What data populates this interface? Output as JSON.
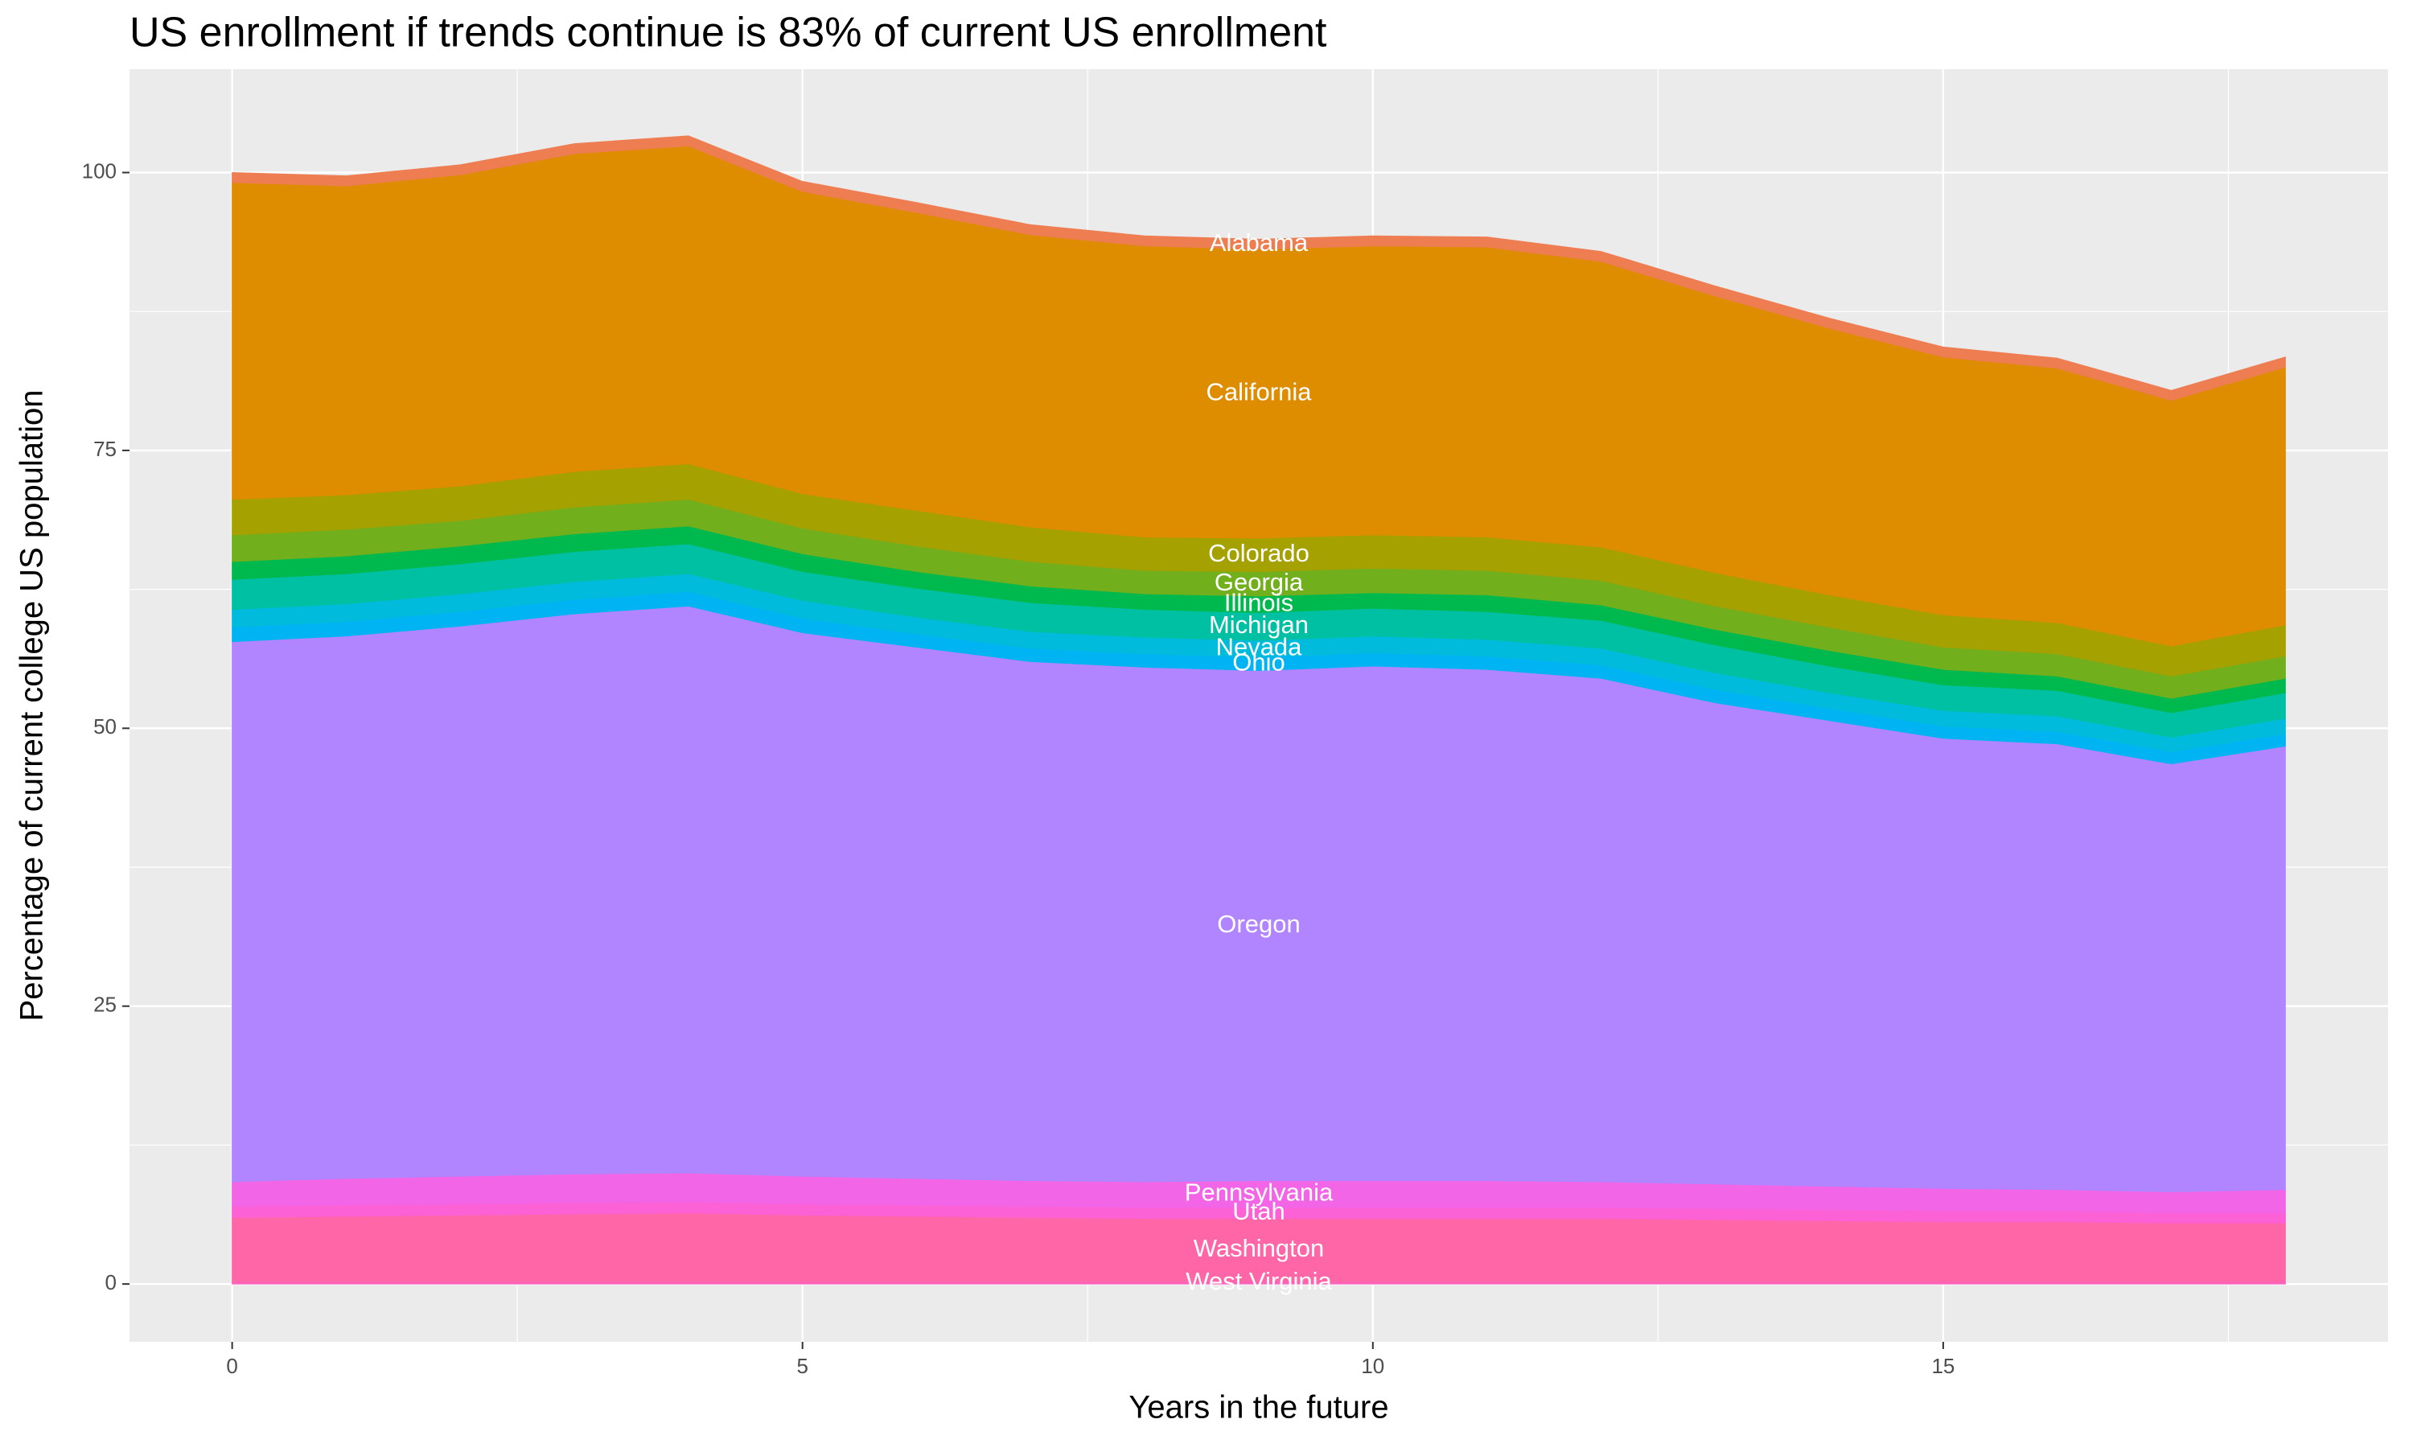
{
  "chart_data": {
    "type": "stacked_area",
    "title": "US enrollment if trends continue is 83% of current US enrollment",
    "x_label": "Years in the future",
    "y_label": "Percentage of current college US population",
    "x": [
      0,
      1,
      2,
      3,
      4,
      5,
      6,
      7,
      8,
      9,
      10,
      11,
      12,
      13,
      14,
      15,
      16,
      17,
      18
    ],
    "xlim": [
      -0.9,
      18.9
    ],
    "xticks": [
      0,
      5,
      10,
      15
    ],
    "ylim": [
      -5.2,
      109.3
    ],
    "yticks": [
      0,
      25,
      50,
      75,
      100
    ],
    "grid": true,
    "series": [
      {
        "name": "West Virginia",
        "color": "#ff62bc",
        "values": [
          0.2,
          0.2,
          0.2,
          0.2,
          0.2,
          0.2,
          0.2,
          0.2,
          0.2,
          0.2,
          0.2,
          0.2,
          0.2,
          0.2,
          0.2,
          0.2,
          0.2,
          0.2,
          0.2
        ]
      },
      {
        "name": "Washington",
        "color": "#ff66a8",
        "values": [
          5.8,
          5.9,
          6.0,
          6.1,
          6.2,
          6.0,
          5.9,
          5.8,
          5.7,
          5.7,
          5.7,
          5.7,
          5.7,
          5.6,
          5.5,
          5.4,
          5.4,
          5.3,
          5.3
        ]
      },
      {
        "name": "Utah",
        "color": "#fc61d5",
        "values": [
          1.0,
          1.0,
          1.0,
          1.0,
          1.0,
          1.0,
          1.0,
          1.0,
          1.0,
          1.0,
          1.0,
          1.0,
          1.0,
          1.0,
          1.0,
          1.0,
          1.0,
          0.9,
          0.9
        ]
      },
      {
        "name": "Pennsylvania",
        "color": "#f265e7",
        "values": [
          2.2,
          2.4,
          2.5,
          2.6,
          2.6,
          2.5,
          2.4,
          2.3,
          2.3,
          2.4,
          2.4,
          2.4,
          2.3,
          2.2,
          2.1,
          2.0,
          1.9,
          1.9,
          2.1
        ]
      },
      {
        "name": "Oregon",
        "color": "#b085ff",
        "values": [
          48.6,
          48.8,
          49.5,
          50.4,
          51.0,
          48.9,
          47.8,
          46.7,
          46.3,
          45.9,
          46.3,
          46.0,
          45.3,
          43.3,
          41.9,
          40.5,
          40.1,
          38.5,
          39.9
        ]
      },
      {
        "name": "Ohio",
        "color": "#00b3f2",
        "values": [
          1.3,
          1.3,
          1.3,
          1.3,
          1.3,
          1.3,
          1.2,
          1.2,
          1.2,
          1.2,
          1.2,
          1.2,
          1.2,
          1.2,
          1.1,
          1.1,
          1.1,
          1.1,
          1.1
        ]
      },
      {
        "name": "Nevada",
        "color": "#00bbdb",
        "values": [
          1.6,
          1.6,
          1.6,
          1.6,
          1.6,
          1.6,
          1.5,
          1.5,
          1.5,
          1.5,
          1.5,
          1.5,
          1.5,
          1.5,
          1.4,
          1.4,
          1.4,
          1.3,
          1.4
        ]
      },
      {
        "name": "Michigan",
        "color": "#00c0a3",
        "values": [
          2.7,
          2.7,
          2.7,
          2.7,
          2.7,
          2.6,
          2.6,
          2.6,
          2.5,
          2.5,
          2.5,
          2.5,
          2.5,
          2.5,
          2.4,
          2.3,
          2.3,
          2.2,
          2.3
        ]
      },
      {
        "name": "Illinois",
        "color": "#00b94e",
        "values": [
          1.6,
          1.6,
          1.6,
          1.6,
          1.6,
          1.6,
          1.5,
          1.5,
          1.4,
          1.5,
          1.4,
          1.5,
          1.4,
          1.4,
          1.4,
          1.4,
          1.3,
          1.3,
          1.3
        ]
      },
      {
        "name": "Georgia",
        "color": "#72af1c",
        "values": [
          2.4,
          2.4,
          2.3,
          2.4,
          2.4,
          2.3,
          2.3,
          2.2,
          2.1,
          2.2,
          2.2,
          2.2,
          2.2,
          2.1,
          2.1,
          2.0,
          2.0,
          2.0,
          2.0
        ]
      },
      {
        "name": "Colorado",
        "color": "#a4a100",
        "values": [
          3.2,
          3.1,
          3.1,
          3.2,
          3.2,
          3.1,
          3.2,
          3.1,
          3.0,
          3.0,
          3.0,
          3.0,
          3.0,
          3.0,
          2.9,
          2.9,
          2.8,
          2.7,
          2.8
        ]
      },
      {
        "name": "California",
        "color": "#de8c00",
        "values": [
          28.5,
          27.8,
          28.0,
          28.6,
          28.6,
          27.2,
          26.8,
          26.3,
          26.2,
          26.0,
          26.0,
          26.1,
          25.7,
          24.9,
          24.0,
          23.2,
          22.9,
          22.1,
          23.2
        ]
      },
      {
        "name": "Alabama",
        "color": "#ee7d52",
        "values": [
          0.9,
          0.9,
          0.9,
          0.9,
          0.9,
          0.9,
          0.9,
          0.9,
          0.9,
          0.9,
          0.9,
          0.9,
          0.9,
          0.9,
          0.9,
          0.9,
          0.9,
          0.9,
          0.9
        ]
      }
    ]
  }
}
